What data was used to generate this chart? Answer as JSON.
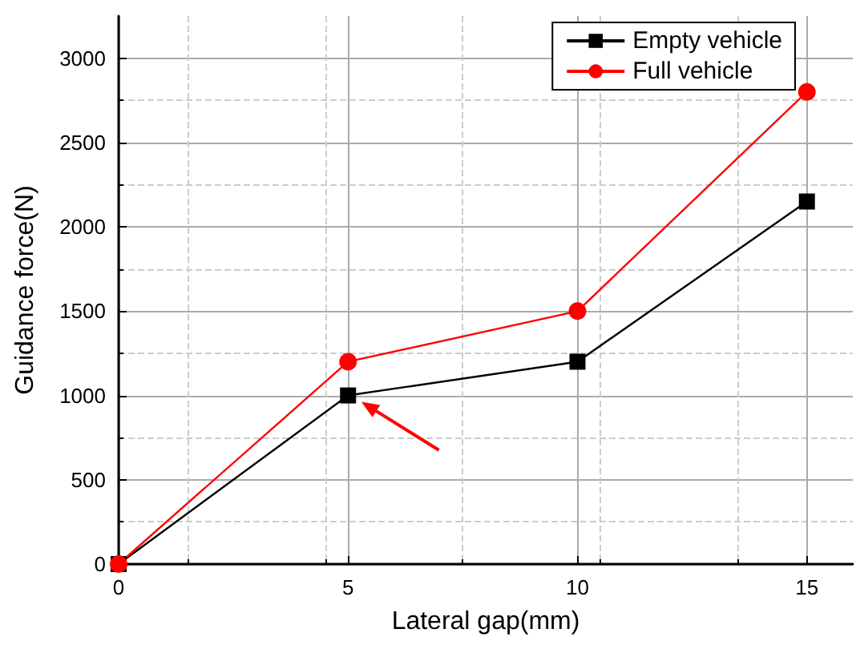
{
  "chart_data": {
    "type": "line",
    "xlabel": "Lateral gap(mm)",
    "ylabel": "Guidance force(N)",
    "x": [
      0,
      5,
      10,
      15
    ],
    "series": [
      {
        "name": "Empty vehicle",
        "color": "#000000",
        "marker": "square",
        "values": [
          0,
          1000,
          1200,
          2150
        ]
      },
      {
        "name": "Full vehicle",
        "color": "#ff0000",
        "marker": "circle",
        "values": [
          0,
          1200,
          1500,
          2800
        ]
      }
    ],
    "xlim": [
      0,
      16
    ],
    "xticks": [
      0,
      5,
      10,
      15
    ],
    "ylim": [
      0,
      3250
    ],
    "yticks": [
      0,
      500,
      1000,
      1500,
      2000,
      2500,
      3000
    ],
    "grid": true,
    "legend": "top right",
    "line_style": "solid"
  }
}
